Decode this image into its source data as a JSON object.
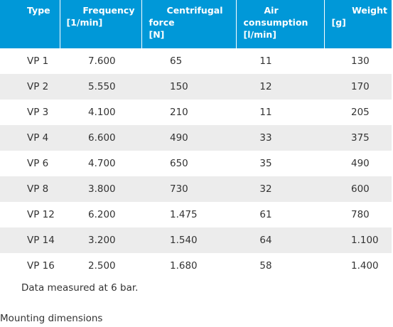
{
  "table": {
    "headers": [
      {
        "line1": "Type",
        "line2": "",
        "line3": ""
      },
      {
        "line1": "Frequency",
        "line2": "[1/min]",
        "line3": ""
      },
      {
        "line1": "Centrifugal",
        "line2": "force",
        "line3": "[N]"
      },
      {
        "line1": "Air",
        "line2": "consumption",
        "line3": "[l/min]"
      },
      {
        "line1": "Weight",
        "line2": "[g]",
        "line3": ""
      }
    ],
    "rows": [
      {
        "type": "VP 1",
        "frequency": "7.600",
        "force": "65",
        "air": "11",
        "weight": "130"
      },
      {
        "type": "VP 2",
        "frequency": "5.550",
        "force": "150",
        "air": "12",
        "weight": "170"
      },
      {
        "type": "VP 3",
        "frequency": "4.100",
        "force": "210",
        "air": "11",
        "weight": "205"
      },
      {
        "type": "VP 4",
        "frequency": "6.600",
        "force": "490",
        "air": "33",
        "weight": "375"
      },
      {
        "type": "VP 6",
        "frequency": "4.700",
        "force": "650",
        "air": "35",
        "weight": "490"
      },
      {
        "type": "VP 8",
        "frequency": "3.800",
        "force": "730",
        "air": "32",
        "weight": "600"
      },
      {
        "type": "VP 12",
        "frequency": "6.200",
        "force": "1.475",
        "air": "61",
        "weight": "780"
      },
      {
        "type": "VP 14",
        "frequency": "3.200",
        "force": "1.540",
        "air": "64",
        "weight": "1.100"
      },
      {
        "type": "VP 16",
        "frequency": "2.500",
        "force": "1.680",
        "air": "58",
        "weight": "1.400"
      }
    ]
  },
  "note": "Data measured at 6 bar.",
  "section_heading": "Mounting dimensions",
  "colors": {
    "header_bg": "#0098d8",
    "stripe": "#ececec"
  }
}
